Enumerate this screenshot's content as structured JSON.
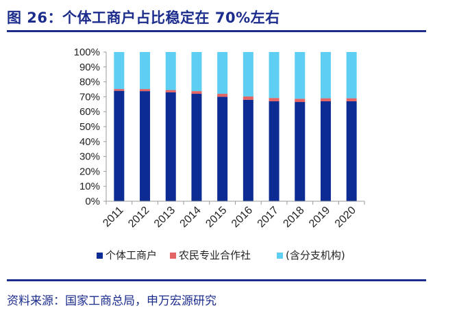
{
  "title": "图 26：个体工商户占比稳定在 70%左右",
  "source": "资料来源：国家工商总局，申万宏源研究",
  "colors": {
    "brand": "#1b2c8c",
    "series": [
      "#0d2c93",
      "#e26464",
      "#5ecef3"
    ],
    "axis": "#9a9a9a",
    "text": "#222222"
  },
  "chart_data": {
    "type": "bar",
    "stacked": true,
    "categories": [
      "2011",
      "2012",
      "2013",
      "2014",
      "2015",
      "2016",
      "2017",
      "2018",
      "2019",
      "2020"
    ],
    "series": [
      {
        "name": "个体工商户",
        "values": [
          74.0,
          73.8,
          73.0,
          72.0,
          70.0,
          68.0,
          67.0,
          66.5,
          67.0,
          67.0
        ]
      },
      {
        "name": "农民专业合作社",
        "values": [
          1.2,
          1.4,
          1.5,
          1.8,
          2.0,
          2.2,
          2.2,
          2.2,
          2.0,
          2.0
        ]
      },
      {
        "name": "(含分支机构)",
        "values": [
          24.8,
          24.8,
          25.5,
          26.2,
          28.0,
          29.8,
          30.8,
          31.3,
          31.0,
          31.0
        ]
      }
    ],
    "ylim": [
      0,
      100
    ],
    "yticks": [
      "0%",
      "10%",
      "20%",
      "30%",
      "40%",
      "50%",
      "60%",
      "70%",
      "80%",
      "90%",
      "100%"
    ],
    "grid": false,
    "legend_position": "bottom"
  }
}
